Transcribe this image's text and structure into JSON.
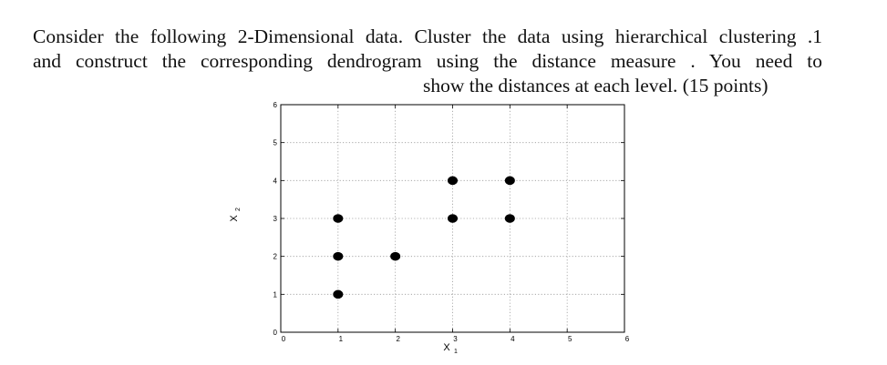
{
  "question": {
    "line1": "Consider the following 2-Dimensional data. Cluster the data using hierarchical clustering .1",
    "line2": "and construct the corresponding dendrogram using the distance measure . You need to",
    "line3": "show the distances at each level. (15 points)"
  },
  "chart_data": {
    "type": "scatter",
    "xlabel": "X",
    "xlabel_sub": "1",
    "ylabel": "X",
    "ylabel_sub": "2",
    "xlim": [
      0,
      6
    ],
    "ylim": [
      0,
      6
    ],
    "xticks": [
      "0",
      "1",
      "2",
      "3",
      "4",
      "5",
      "6"
    ],
    "yticks": [
      "0",
      "1",
      "2",
      "3",
      "4",
      "5",
      "6"
    ],
    "grid": true,
    "points": [
      {
        "x": 1,
        "y": 1
      },
      {
        "x": 1,
        "y": 2
      },
      {
        "x": 1,
        "y": 3
      },
      {
        "x": 2,
        "y": 2
      },
      {
        "x": 3,
        "y": 3
      },
      {
        "x": 3,
        "y": 4
      },
      {
        "x": 4,
        "y": 3
      },
      {
        "x": 4,
        "y": 4
      }
    ],
    "marker_color": "#000000"
  }
}
